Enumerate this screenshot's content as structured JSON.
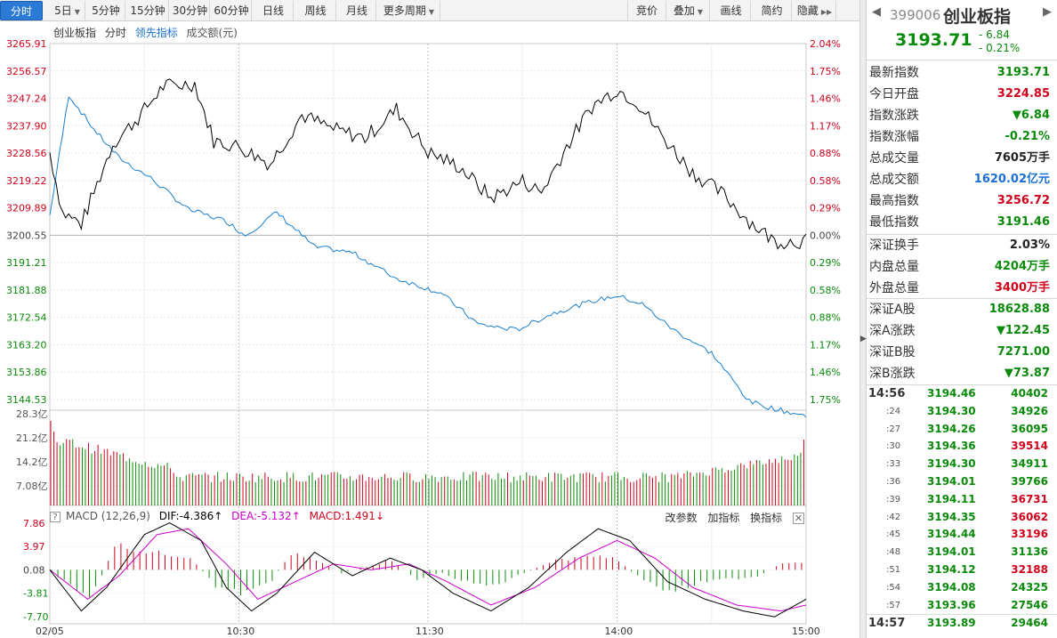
{
  "toolbar": {
    "items": [
      "分时",
      "5日",
      "5分钟",
      "15分钟",
      "30分钟",
      "60分钟",
      "日线",
      "周线",
      "月线",
      "更多周期"
    ],
    "right_items": [
      "竞价",
      "叠加",
      "画线",
      "简约",
      "隐藏"
    ]
  },
  "legend": {
    "name": "创业板指",
    "mode": "分时",
    "lead": "领先指标",
    "vol": "成交额(元)"
  },
  "macd_legend": {
    "title": "MACD (12,26,9)",
    "dif": "DIF:-4.386↑",
    "dea": "DEA:-5.132↑",
    "macd": "MACD:1.491↓",
    "actions": [
      "改参数",
      "加指标",
      "换指标"
    ]
  },
  "axes": {
    "price_labels": [
      "3265.91",
      "3256.57",
      "3247.24",
      "3237.90",
      "3228.56",
      "3219.22",
      "3209.89",
      "3200.55",
      "3191.21",
      "3181.88",
      "3172.54",
      "3163.20",
      "3153.86",
      "3144.53"
    ],
    "pct_labels": [
      "2.04%",
      "1.75%",
      "1.46%",
      "1.17%",
      "0.88%",
      "0.58%",
      "0.29%",
      "0.00%",
      "0.29%",
      "0.58%",
      "0.88%",
      "1.17%",
      "1.46%",
      "1.75%"
    ],
    "vol_labels": [
      "28.3亿",
      "21.2亿",
      "14.2亿",
      "7.08亿"
    ],
    "macd_labels": [
      "7.86",
      "3.97",
      "0.08",
      "-3.81",
      "-7.70"
    ],
    "time_labels": [
      "02/05",
      "10:30",
      "11:30",
      "14:00",
      "15:00"
    ]
  },
  "chart_data": {
    "type": "line",
    "x": [
      "09:30",
      "15:00"
    ],
    "ylim": [
      3144.53,
      3265.91
    ],
    "prev_close": 3200.55,
    "series": [],
    "volume_ylim": [
      0,
      28.3
    ],
    "macd_ylim": [
      -7.7,
      7.86
    ]
  },
  "quote": {
    "code": "399006",
    "name": "创业板指",
    "price": "3193.71",
    "change": "- 6.84",
    "change_pct": "- 0.21%"
  },
  "stats": [
    {
      "k": "最新指数",
      "v": "3193.71",
      "c": "green"
    },
    {
      "k": "今日开盘",
      "v": "3224.85",
      "c": "red"
    },
    {
      "k": "指数涨跌",
      "v": "▼6.84",
      "c": "green"
    },
    {
      "k": "指数涨幅",
      "v": "-0.21%",
      "c": "green"
    },
    {
      "k": "总成交量",
      "v": "7605万手",
      "c": "black"
    },
    {
      "k": "总成交额",
      "v": "1620.02亿元",
      "c": "blue"
    },
    {
      "k": "最高指数",
      "v": "3256.72",
      "c": "red"
    },
    {
      "k": "最低指数",
      "v": "3191.46",
      "c": "green"
    }
  ],
  "stats2": [
    {
      "k": "深证换手",
      "v": "2.03%",
      "c": "black"
    },
    {
      "k": "内盘总量",
      "v": "4204万手",
      "c": "green"
    },
    {
      "k": "外盘总量",
      "v": "3400万手",
      "c": "red"
    }
  ],
  "stats3": [
    {
      "k": "深证A股",
      "v": "18628.88",
      "c": "green"
    },
    {
      "k": "深A涨跌",
      "v": "▼122.45",
      "c": "green"
    },
    {
      "k": "深证B股",
      "v": "7271.00",
      "c": "green"
    },
    {
      "k": "深B涨跌",
      "v": "▼73.87",
      "c": "green"
    }
  ],
  "ticks": [
    {
      "t": "14:56",
      "p": "3194.46",
      "v": "40402",
      "c": "green",
      "big": true
    },
    {
      "t": ":24",
      "p": "3194.30",
      "v": "34926",
      "c": "green"
    },
    {
      "t": ":27",
      "p": "3194.26",
      "v": "36095",
      "c": "green"
    },
    {
      "t": ":30",
      "p": "3194.36",
      "v": "39514",
      "c": "red"
    },
    {
      "t": ":33",
      "p": "3194.30",
      "v": "34911",
      "c": "green"
    },
    {
      "t": ":36",
      "p": "3194.01",
      "v": "39766",
      "c": "green"
    },
    {
      "t": ":39",
      "p": "3194.11",
      "v": "36731",
      "c": "red"
    },
    {
      "t": ":42",
      "p": "3194.35",
      "v": "36062",
      "c": "red"
    },
    {
      "t": ":45",
      "p": "3194.44",
      "v": "33196",
      "c": "red"
    },
    {
      "t": ":48",
      "p": "3194.01",
      "v": "31136",
      "c": "green"
    },
    {
      "t": ":51",
      "p": "3194.12",
      "v": "32188",
      "c": "red"
    },
    {
      "t": ":54",
      "p": "3194.08",
      "v": "24325",
      "c": "green"
    },
    {
      "t": ":57",
      "p": "3193.96",
      "v": "27546",
      "c": "green"
    },
    {
      "t": "14:57",
      "p": "3193.89",
      "v": "29464",
      "c": "green",
      "big": true,
      "boxed": true
    }
  ],
  "colors": {
    "red": "#d0021b",
    "green": "#0a8a0a",
    "blue": "#1a6fd0",
    "price_line": "#000000",
    "lead_line": "#1a7fcf",
    "dea_line": "#cc00cc"
  }
}
